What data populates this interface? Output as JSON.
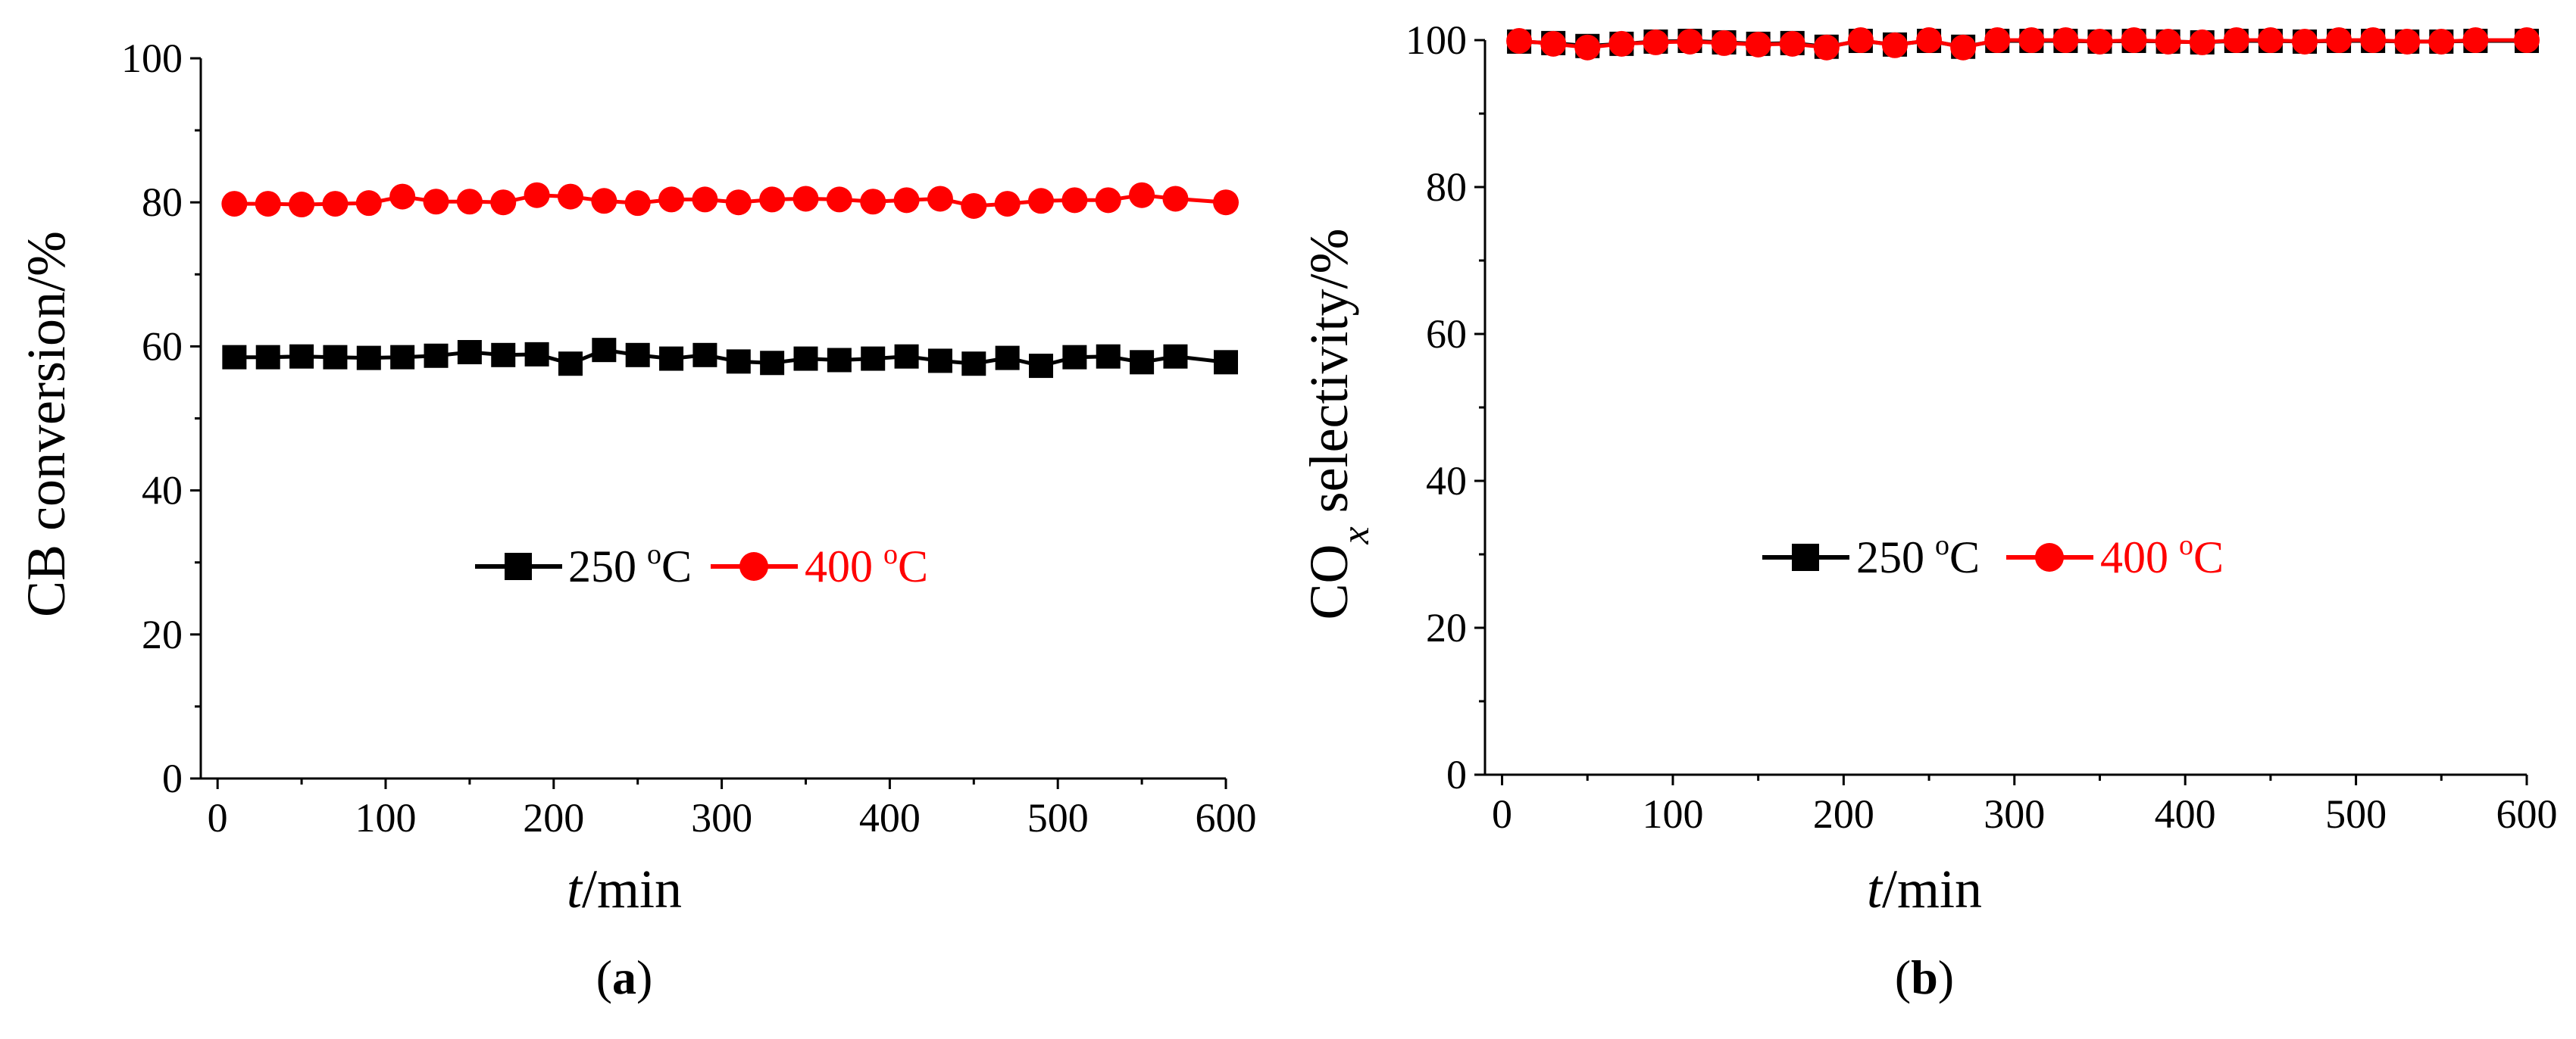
{
  "colors": {
    "series_250": "#000000",
    "series_400": "#ff0000",
    "axis": "#000000"
  },
  "chart_data": [
    {
      "type": "line",
      "panel_label": "a",
      "xlabel": {
        "italic": "t",
        "unit": "/min"
      },
      "ylabel": {
        "text": "CB conversion/%"
      },
      "xlim": [
        0,
        600
      ],
      "ylim": [
        0,
        100
      ],
      "xticks": [
        "0",
        "100",
        "200",
        "300",
        "400",
        "500",
        "600"
      ],
      "yticks": [
        "0",
        "20",
        "40",
        "60",
        "80",
        "100"
      ],
      "x": [
        10,
        30,
        50,
        70,
        90,
        110,
        130,
        150,
        170,
        190,
        210,
        230,
        250,
        270,
        290,
        310,
        330,
        350,
        370,
        390,
        410,
        430,
        450,
        470,
        490,
        510,
        530,
        550,
        570,
        600
      ],
      "legend_position": "center",
      "series": [
        {
          "name": "250 °C",
          "label_num": "250",
          "label_sup": "o",
          "label_unit": "C",
          "marker": "square",
          "color": "#000000",
          "values": [
            58.5,
            58.5,
            58.6,
            58.5,
            58.4,
            58.5,
            58.7,
            59.2,
            58.8,
            58.9,
            57.6,
            59.5,
            58.8,
            58.3,
            58.8,
            57.9,
            57.7,
            58.3,
            58.1,
            58.3,
            58.6,
            58.0,
            57.6,
            58.4,
            57.3,
            58.5,
            58.6,
            57.8,
            58.6,
            57.8
          ]
        },
        {
          "name": "400 °C",
          "label_num": "400",
          "label_sup": "o",
          "label_unit": "C",
          "marker": "circle",
          "color": "#ff0000",
          "values": [
            79.8,
            79.8,
            79.7,
            79.8,
            79.9,
            80.8,
            80.1,
            80.1,
            80.0,
            81.0,
            80.8,
            80.2,
            79.9,
            80.4,
            80.4,
            80.0,
            80.4,
            80.5,
            80.4,
            80.1,
            80.3,
            80.5,
            79.5,
            79.8,
            80.2,
            80.3,
            80.3,
            81.0,
            80.5,
            80.0
          ]
        }
      ]
    },
    {
      "type": "line",
      "panel_label": "b",
      "xlabel": {
        "italic": "t",
        "unit": "/min"
      },
      "ylabel": {
        "prefix": "CO",
        "sub": "x",
        "suffix": " selectivity/%"
      },
      "xlim": [
        0,
        600
      ],
      "ylim": [
        0,
        100
      ],
      "xticks": [
        "0",
        "100",
        "200",
        "300",
        "400",
        "500",
        "600"
      ],
      "yticks": [
        "0",
        "20",
        "40",
        "60",
        "80",
        "100"
      ],
      "x": [
        10,
        30,
        50,
        70,
        90,
        110,
        130,
        150,
        170,
        190,
        210,
        230,
        250,
        270,
        290,
        310,
        330,
        350,
        370,
        390,
        410,
        430,
        450,
        470,
        490,
        510,
        530,
        550,
        570,
        600
      ],
      "legend_position": "center",
      "series": [
        {
          "name": "250 °C",
          "label_num": "250",
          "label_sup": "o",
          "label_unit": "C",
          "marker": "square",
          "color": "#000000",
          "values": [
            99.8,
            99.6,
            99.2,
            99.5,
            99.8,
            99.9,
            99.7,
            99.5,
            99.6,
            99.1,
            99.9,
            99.4,
            99.9,
            99.1,
            99.9,
            99.9,
            99.9,
            99.8,
            99.9,
            99.8,
            99.7,
            99.9,
            99.9,
            99.8,
            99.9,
            99.9,
            99.8,
            99.8,
            99.9,
            99.9
          ]
        },
        {
          "name": "400 °C",
          "label_num": "400",
          "label_sup": "o",
          "label_unit": "C",
          "marker": "circle",
          "color": "#ff0000",
          "values": [
            99.9,
            99.5,
            99.0,
            99.5,
            99.7,
            99.8,
            99.6,
            99.4,
            99.5,
            99.0,
            100.0,
            99.3,
            100.0,
            99.0,
            100.0,
            100.0,
            100.0,
            99.8,
            100.0,
            99.8,
            99.7,
            100.0,
            100.0,
            99.8,
            100.0,
            100.0,
            99.8,
            99.8,
            100.0,
            100.0
          ]
        }
      ]
    }
  ]
}
